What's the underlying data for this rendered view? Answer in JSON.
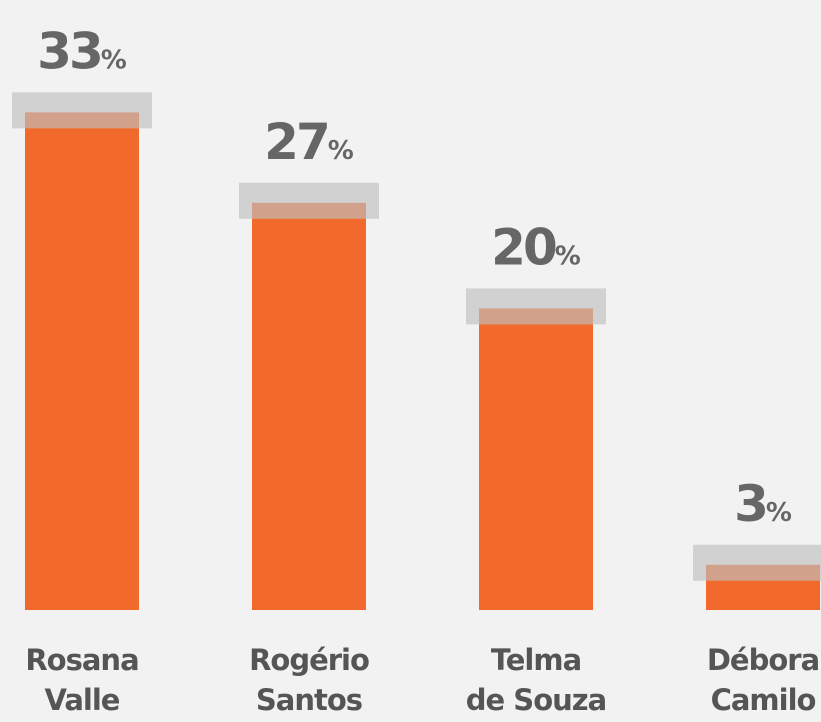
{
  "chart_data": {
    "type": "bar",
    "categories": [
      [
        "Rosana",
        "Valle"
      ],
      [
        "Rogério",
        "Santos"
      ],
      [
        "Telma",
        "de Souza"
      ],
      [
        "Débora",
        "Camilo"
      ]
    ],
    "values": [
      33,
      27,
      20,
      3
    ],
    "value_labels": [
      "33%",
      "27%",
      "20%",
      "3%"
    ],
    "color": "#f26a2b"
  }
}
